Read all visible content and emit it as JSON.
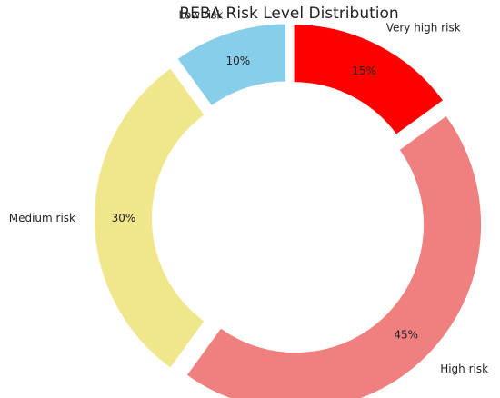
{
  "chart_data": {
    "type": "pie",
    "title": "REBA Risk Level Distribution",
    "categories": [
      "Very high risk",
      "High risk",
      "Medium risk",
      "Low risk"
    ],
    "values": [
      15,
      45,
      30,
      10
    ],
    "percent_labels": [
      "15%",
      "45%",
      "30%",
      "10%"
    ],
    "colors": [
      "#ff0000",
      "#f08080",
      "#f0e68c",
      "#87ceeb"
    ],
    "donut": true,
    "exploded": true,
    "start_angle": "top (12 o'clock)",
    "direction": "clockwise",
    "legend": "none"
  }
}
